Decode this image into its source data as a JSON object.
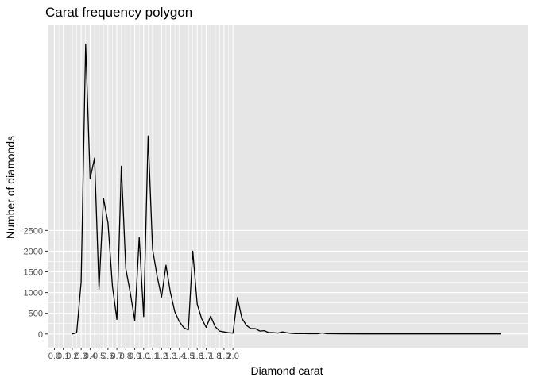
{
  "chart_data": {
    "type": "line",
    "title": "Carat frequency polygon",
    "xlabel": "Diamond carat",
    "ylabel": "Number of diamonds",
    "x_ticks": [
      0.0,
      0.1,
      0.2,
      0.3,
      0.4,
      0.5,
      0.6,
      0.7,
      0.8,
      0.9,
      1.0,
      1.1,
      1.2,
      1.3,
      1.4,
      1.5,
      1.6,
      1.7,
      1.8,
      1.9,
      2.0
    ],
    "x_tick_labels": [
      "0.0",
      "0.1",
      "0.2",
      "0.3",
      "0.4",
      "0.5",
      "0.6",
      "0.7",
      "0.8",
      "0.9",
      "1.0",
      "1.1",
      "1.2",
      "1.3",
      "1.4",
      "1.5",
      "1.6",
      "1.7",
      "1.8",
      "1.9",
      "2.0"
    ],
    "y_ticks": [
      0,
      500,
      1000,
      1500,
      2000,
      2500
    ],
    "y_tick_labels": [
      "0",
      "500",
      "1000",
      "1500",
      "2000",
      "2500"
    ],
    "xlim": [
      -0.075,
      5.3
    ],
    "ylim": [
      -330,
      7450
    ],
    "grid": true,
    "line_color": "#000000",
    "panel_color": "#e6e6e6",
    "grid_color": "#ffffff",
    "series": [
      {
        "x": [
          0.2,
          0.25,
          0.3,
          0.35,
          0.4,
          0.45,
          0.5,
          0.55,
          0.6,
          0.65,
          0.7,
          0.75,
          0.8,
          0.85,
          0.9,
          0.95,
          1.0,
          1.05,
          1.1,
          1.15,
          1.2,
          1.25,
          1.3,
          1.35,
          1.4,
          1.45,
          1.5,
          1.55,
          1.6,
          1.65,
          1.7,
          1.75,
          1.8,
          1.85,
          1.9,
          1.95,
          2.0,
          2.05,
          2.1,
          2.15,
          2.2,
          2.25,
          2.3,
          2.35,
          2.4,
          2.45,
          2.5,
          2.55,
          2.6,
          2.65,
          2.7,
          2.75,
          2.8,
          2.85,
          2.9,
          2.95,
          3.0,
          3.05,
          3.1,
          3.2,
          3.5,
          4.0,
          4.5,
          5.0
        ],
        "y": [
          0,
          30,
          1250,
          7000,
          3750,
          4250,
          1080,
          3280,
          2680,
          1150,
          350,
          4050,
          1580,
          1000,
          330,
          2330,
          420,
          4780,
          2050,
          1400,
          890,
          1660,
          1000,
          530,
          300,
          150,
          100,
          2000,
          720,
          370,
          160,
          430,
          180,
          70,
          50,
          30,
          20,
          880,
          380,
          210,
          130,
          130,
          70,
          80,
          35,
          35,
          20,
          50,
          30,
          15,
          10,
          10,
          8,
          5,
          5,
          5,
          25,
          5,
          5,
          3,
          2,
          2,
          1,
          1
        ]
      }
    ]
  }
}
